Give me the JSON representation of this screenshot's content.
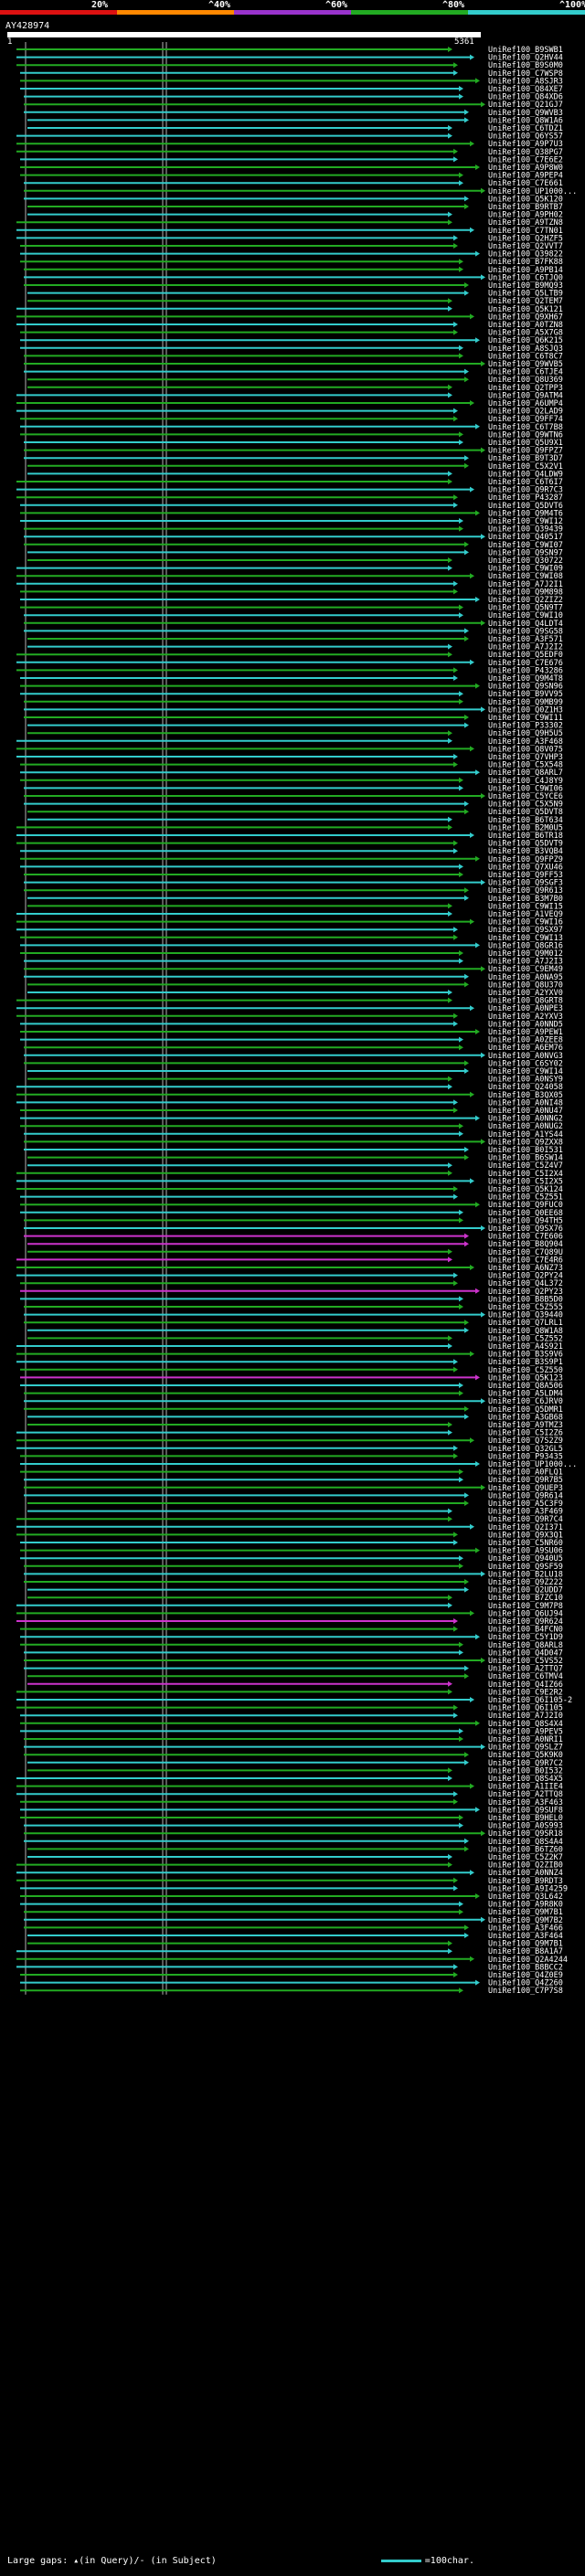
{
  "legend": {
    "labels": [
      "20%",
      "^40%",
      "^60%",
      "^80%",
      "^100%"
    ],
    "colors": [
      "#dd1111",
      "#ff8800",
      "#9933cc",
      "#22aa22",
      "#33cccc"
    ]
  },
  "query": {
    "id": "AY428974",
    "start": "1",
    "end": "5361"
  },
  "footer": {
    "gaps_text": "Large gaps: ▴(in Query)/- (in Subject)",
    "scale_text": "=100char."
  },
  "chart_data": {
    "type": "alignment-overview",
    "title": "AY428974",
    "xlim": [
      1,
      5361
    ],
    "rows": [
      {
        "id": "UniRef100_B9SWB1",
        "cat": "green"
      },
      {
        "id": "UniRef100_Q2HV44",
        "cat": "cyan"
      },
      {
        "id": "UniRef100_B9S0M0",
        "cat": "green"
      },
      {
        "id": "UniRef100_C7WSP8",
        "cat": "cyan"
      },
      {
        "id": "UniRef100_A8SJR3",
        "cat": "green"
      },
      {
        "id": "UniRef100_Q84XE7",
        "cat": "cyan"
      },
      {
        "id": "UniRef100_Q84XD6",
        "cat": "cyan"
      },
      {
        "id": "UniRef100_Q21GJ7",
        "cat": "green"
      },
      {
        "id": "UniRef100_Q9WVB3",
        "cat": "cyan"
      },
      {
        "id": "UniRef100_Q8W1A6",
        "cat": "cyan"
      },
      {
        "id": "UniRef100_C6TDZ1",
        "cat": "cyan"
      },
      {
        "id": "UniRef100_Q6YS57",
        "cat": "cyan"
      },
      {
        "id": "UniRef100_A9P7U3",
        "cat": "green"
      },
      {
        "id": "UniRef100_Q38PG7",
        "cat": "green"
      },
      {
        "id": "UniRef100_C7E6E2",
        "cat": "cyan"
      },
      {
        "id": "UniRef100_A9P8W0",
        "cat": "green"
      },
      {
        "id": "UniRef100_A9PEP4",
        "cat": "green"
      },
      {
        "id": "UniRef100_C7E661",
        "cat": "cyan"
      },
      {
        "id": "UniRef100_UP1000...",
        "cat": "green"
      },
      {
        "id": "UniRef100_Q5K120",
        "cat": "cyan"
      },
      {
        "id": "UniRef100_B9RTB7",
        "cat": "green"
      },
      {
        "id": "UniRef100_A9PH02",
        "cat": "cyan"
      },
      {
        "id": "UniRef100_A9TZN8",
        "cat": "green"
      },
      {
        "id": "UniRef100_C7TN01",
        "cat": "cyan"
      },
      {
        "id": "UniRef100_Q2HZF5",
        "cat": "cyan"
      },
      {
        "id": "UniRef100_Q2VVT7",
        "cat": "green"
      },
      {
        "id": "UniRef100_Q39822",
        "cat": "cyan"
      },
      {
        "id": "UniRef100_B7FK88",
        "cat": "green"
      },
      {
        "id": "UniRef100_A9PB14",
        "cat": "green"
      },
      {
        "id": "UniRef100_C6TJQ0",
        "cat": "cyan"
      },
      {
        "id": "UniRef100_B9MQ93",
        "cat": "green"
      },
      {
        "id": "UniRef100_Q5LTB9",
        "cat": "cyan"
      },
      {
        "id": "UniRef100_Q2TEM7",
        "cat": "green"
      },
      {
        "id": "UniRef100_Q5K121",
        "cat": "cyan"
      },
      {
        "id": "UniRef100_Q9XH67",
        "cat": "green"
      },
      {
        "id": "UniRef100_A0TZN8",
        "cat": "cyan"
      },
      {
        "id": "UniRef100_A5X7G8",
        "cat": "green"
      },
      {
        "id": "UniRef100_Q6K215",
        "cat": "cyan"
      },
      {
        "id": "UniRef100_A8SJQ3",
        "cat": "cyan"
      },
      {
        "id": "UniRef100_C6T8C7",
        "cat": "green"
      },
      {
        "id": "UniRef100_Q9WVB5",
        "cat": "green"
      },
      {
        "id": "UniRef100_C6TJE4",
        "cat": "cyan"
      },
      {
        "id": "UniRef100_Q8U369",
        "cat": "green"
      },
      {
        "id": "UniRef100_Q2TPP3",
        "cat": "green"
      },
      {
        "id": "UniRef100_Q9ATM4",
        "cat": "cyan"
      },
      {
        "id": "UniRef100_A6UMP4",
        "cat": "green"
      },
      {
        "id": "UniRef100_Q2LAD9",
        "cat": "cyan"
      },
      {
        "id": "UniRef100_Q9FF74",
        "cat": "green"
      },
      {
        "id": "UniRef100_C6T7B8",
        "cat": "cyan"
      },
      {
        "id": "UniRef100_Q9WTN6",
        "cat": "green"
      },
      {
        "id": "UniRef100_Q5U9X1",
        "cat": "cyan"
      },
      {
        "id": "UniRef100_Q9FPZ7",
        "cat": "green"
      },
      {
        "id": "UniRef100_B9T3D7",
        "cat": "cyan"
      },
      {
        "id": "UniRef100_C5X2V1",
        "cat": "green"
      },
      {
        "id": "UniRef100_Q4LDW9",
        "cat": "cyan"
      },
      {
        "id": "UniRef100_C6T6I7",
        "cat": "green"
      },
      {
        "id": "UniRef100_Q9R7C3",
        "cat": "cyan"
      },
      {
        "id": "UniRef100_P43287",
        "cat": "green"
      },
      {
        "id": "UniRef100_Q5DVT6",
        "cat": "cyan"
      },
      {
        "id": "UniRef100_Q9M4T6",
        "cat": "green"
      },
      {
        "id": "UniRef100_C9WI12",
        "cat": "cyan"
      },
      {
        "id": "UniRef100_Q39439",
        "cat": "green"
      },
      {
        "id": "UniRef100_Q40517",
        "cat": "cyan"
      },
      {
        "id": "UniRef100_C9WI07",
        "cat": "green"
      },
      {
        "id": "UniRef100_Q9SN97",
        "cat": "cyan"
      },
      {
        "id": "UniRef100_Q30722",
        "cat": "green"
      },
      {
        "id": "UniRef100_C9WI09",
        "cat": "cyan"
      },
      {
        "id": "UniRef100_C9WI08",
        "cat": "green"
      },
      {
        "id": "UniRef100_A7J2I1",
        "cat": "cyan"
      },
      {
        "id": "UniRef100_Q9M898",
        "cat": "green"
      },
      {
        "id": "UniRef100_Q2ZIZ2",
        "cat": "cyan"
      },
      {
        "id": "UniRef100_Q5N9T7",
        "cat": "green"
      },
      {
        "id": "UniRef100_C9WI10",
        "cat": "cyan"
      },
      {
        "id": "UniRef100_Q4LDT4",
        "cat": "green"
      },
      {
        "id": "UniRef100_Q9SG58",
        "cat": "cyan"
      },
      {
        "id": "UniRef100_A3F571",
        "cat": "green"
      },
      {
        "id": "UniRef100_A7J2I2",
        "cat": "cyan"
      },
      {
        "id": "UniRef100_Q5EDF0",
        "cat": "green"
      },
      {
        "id": "UniRef100_C7E676",
        "cat": "cyan"
      },
      {
        "id": "UniRef100_P43286",
        "cat": "green"
      },
      {
        "id": "UniRef100_Q9M4T8",
        "cat": "cyan"
      },
      {
        "id": "UniRef100_Q9SN96",
        "cat": "green"
      },
      {
        "id": "UniRef100_B9VV95",
        "cat": "cyan"
      },
      {
        "id": "UniRef100_Q9MB99",
        "cat": "green"
      },
      {
        "id": "UniRef100_Q0Z1H3",
        "cat": "cyan"
      },
      {
        "id": "UniRef100_C9WI11",
        "cat": "green"
      },
      {
        "id": "UniRef100_P33302",
        "cat": "cyan"
      },
      {
        "id": "UniRef100_Q9H5U5",
        "cat": "green"
      },
      {
        "id": "UniRef100_A3F468",
        "cat": "cyan"
      },
      {
        "id": "UniRef100_Q8V075",
        "cat": "green"
      },
      {
        "id": "UniRef100_Q7VHP3",
        "cat": "cyan"
      },
      {
        "id": "UniRef100_C5X548",
        "cat": "green"
      },
      {
        "id": "UniRef100_Q8ARL7",
        "cat": "cyan"
      },
      {
        "id": "UniRef100_C4J8Y9",
        "cat": "green"
      },
      {
        "id": "UniRef100_C9WI06",
        "cat": "cyan"
      },
      {
        "id": "UniRef100_C5YCE6",
        "cat": "green"
      },
      {
        "id": "UniRef100_C5X5N9",
        "cat": "cyan"
      },
      {
        "id": "UniRef100_Q5DVT8",
        "cat": "green"
      },
      {
        "id": "UniRef100_B6T634",
        "cat": "cyan"
      },
      {
        "id": "UniRef100_B2M0U5",
        "cat": "green"
      },
      {
        "id": "UniRef100_B6TR18",
        "cat": "cyan"
      },
      {
        "id": "UniRef100_Q5DVT9",
        "cat": "green"
      },
      {
        "id": "UniRef100_B3VQB4",
        "cat": "cyan"
      },
      {
        "id": "UniRef100_Q9FPZ9",
        "cat": "green"
      },
      {
        "id": "UniRef100_Q7XU46",
        "cat": "cyan"
      },
      {
        "id": "UniRef100_Q9FF53",
        "cat": "green"
      },
      {
        "id": "UniRef100_Q9SGF3",
        "cat": "cyan"
      },
      {
        "id": "UniRef100_Q9R613",
        "cat": "green"
      },
      {
        "id": "UniRef100_B3M7B0",
        "cat": "cyan"
      },
      {
        "id": "UniRef100_C9WI15",
        "cat": "green"
      },
      {
        "id": "UniRef100_A1VEQ9",
        "cat": "cyan"
      },
      {
        "id": "UniRef100_C9WI16",
        "cat": "green"
      },
      {
        "id": "UniRef100_Q9SX97",
        "cat": "cyan"
      },
      {
        "id": "UniRef100_C9WI13",
        "cat": "green"
      },
      {
        "id": "UniRef100_Q8GR16",
        "cat": "cyan"
      },
      {
        "id": "UniRef100_Q9M012",
        "cat": "green"
      },
      {
        "id": "UniRef100_A7J2I3",
        "cat": "cyan"
      },
      {
        "id": "UniRef100_C9EM49",
        "cat": "green"
      },
      {
        "id": "UniRef100_A0NA95",
        "cat": "cyan"
      },
      {
        "id": "UniRef100_Q8U370",
        "cat": "green"
      },
      {
        "id": "UniRef100_A2YXV0",
        "cat": "cyan"
      },
      {
        "id": "UniRef100_Q8GRT8",
        "cat": "green"
      },
      {
        "id": "UniRef100_A0NPE3",
        "cat": "cyan"
      },
      {
        "id": "UniRef100_A2YXV3",
        "cat": "green"
      },
      {
        "id": "UniRef100_A0NND5",
        "cat": "cyan"
      },
      {
        "id": "UniRef100_A9PEW1",
        "cat": "green"
      },
      {
        "id": "UniRef100_A0ZEE8",
        "cat": "cyan"
      },
      {
        "id": "UniRef100_A6EM76",
        "cat": "green"
      },
      {
        "id": "UniRef100_A0NVG3",
        "cat": "cyan"
      },
      {
        "id": "UniRef100_C6SY02",
        "cat": "green"
      },
      {
        "id": "UniRef100_C9WI14",
        "cat": "cyan"
      },
      {
        "id": "UniRef100_A0NSY9",
        "cat": "green"
      },
      {
        "id": "UniRef100_Q24058",
        "cat": "cyan"
      },
      {
        "id": "UniRef100_B3QX05",
        "cat": "green"
      },
      {
        "id": "UniRef100_A0NI48",
        "cat": "cyan"
      },
      {
        "id": "UniRef100_A0NU47",
        "cat": "green"
      },
      {
        "id": "UniRef100_A0NNG2",
        "cat": "cyan"
      },
      {
        "id": "UniRef100_A0NUG2",
        "cat": "green"
      },
      {
        "id": "UniRef100_A1YS44",
        "cat": "cyan"
      },
      {
        "id": "UniRef100_Q9ZXX8",
        "cat": "green"
      },
      {
        "id": "UniRef100_B0I531",
        "cat": "cyan"
      },
      {
        "id": "UniRef100_B6SW14",
        "cat": "green"
      },
      {
        "id": "UniRef100_C5Z4V7",
        "cat": "cyan"
      },
      {
        "id": "UniRef100_C5I2X4",
        "cat": "green"
      },
      {
        "id": "UniRef100_C5I2X5",
        "cat": "cyan"
      },
      {
        "id": "UniRef100_Q5K124",
        "cat": "green"
      },
      {
        "id": "UniRef100_C5Z551",
        "cat": "cyan"
      },
      {
        "id": "UniRef100_Q9FUC0",
        "cat": "green"
      },
      {
        "id": "UniRef100_Q0EE68",
        "cat": "cyan"
      },
      {
        "id": "UniRef100_Q94TH5",
        "cat": "green"
      },
      {
        "id": "UniRef100_Q9SX76",
        "cat": "cyan"
      },
      {
        "id": "UniRef100_C7E606",
        "cat": "magenta"
      },
      {
        "id": "UniRef100_B8Q904",
        "cat": "magenta"
      },
      {
        "id": "UniRef100_C7Q89U",
        "cat": "green"
      },
      {
        "id": "UniRef100_C7E4R6",
        "cat": "magenta"
      },
      {
        "id": "UniRef100_A6NZ73",
        "cat": "green"
      },
      {
        "id": "UniRef100_Q2PY24",
        "cat": "cyan"
      },
      {
        "id": "UniRef100_Q4L372",
        "cat": "green"
      },
      {
        "id": "UniRef100_Q2PY23",
        "cat": "magenta"
      },
      {
        "id": "UniRef100_B8B5D0",
        "cat": "cyan"
      },
      {
        "id": "UniRef100_C5Z555",
        "cat": "green"
      },
      {
        "id": "UniRef100_Q39440",
        "cat": "cyan"
      },
      {
        "id": "UniRef100_Q7LRL1",
        "cat": "green"
      },
      {
        "id": "UniRef100_Q8W1A8",
        "cat": "cyan"
      },
      {
        "id": "UniRef100_C5Z552",
        "cat": "green"
      },
      {
        "id": "UniRef100_A4S921",
        "cat": "cyan"
      },
      {
        "id": "UniRef100_B3S9V6",
        "cat": "green"
      },
      {
        "id": "UniRef100_B3S9P1",
        "cat": "cyan"
      },
      {
        "id": "UniRef100_C5Z550",
        "cat": "green"
      },
      {
        "id": "UniRef100_Q5K123",
        "cat": "magenta"
      },
      {
        "id": "UniRef100_Q8A506",
        "cat": "cyan"
      },
      {
        "id": "UniRef100_A5LDM4",
        "cat": "green"
      },
      {
        "id": "UniRef100_C6JRV0",
        "cat": "cyan"
      },
      {
        "id": "UniRef100_Q5DMR1",
        "cat": "green"
      },
      {
        "id": "UniRef100_A3GB68",
        "cat": "cyan"
      },
      {
        "id": "UniRef100_A9TMZ3",
        "cat": "green"
      },
      {
        "id": "UniRef100_C5I2Z6",
        "cat": "cyan"
      },
      {
        "id": "UniRef100_Q7S2Z9",
        "cat": "green"
      },
      {
        "id": "UniRef100_Q32GL5",
        "cat": "cyan"
      },
      {
        "id": "UniRef100_P93435",
        "cat": "green"
      },
      {
        "id": "UniRef100_UP1000...",
        "cat": "cyan"
      },
      {
        "id": "UniRef100_A0FLQ1",
        "cat": "green"
      },
      {
        "id": "UniRef100_Q9R7B5",
        "cat": "cyan"
      },
      {
        "id": "UniRef100_Q9UEP3",
        "cat": "green"
      },
      {
        "id": "UniRef100_Q9R614",
        "cat": "cyan"
      },
      {
        "id": "UniRef100_A5C3F9",
        "cat": "green"
      },
      {
        "id": "UniRef100_A3F469",
        "cat": "cyan"
      },
      {
        "id": "UniRef100_Q9R7C4",
        "cat": "green"
      },
      {
        "id": "UniRef100_Q2I371",
        "cat": "cyan"
      },
      {
        "id": "UniRef100_Q9X3Q1",
        "cat": "green"
      },
      {
        "id": "UniRef100_C5NR60",
        "cat": "cyan"
      },
      {
        "id": "UniRef100_A9SU06",
        "cat": "green"
      },
      {
        "id": "UniRef100_Q940U5",
        "cat": "cyan"
      },
      {
        "id": "UniRef100_Q9SF59",
        "cat": "green"
      },
      {
        "id": "UniRef100_B2LU18",
        "cat": "cyan"
      },
      {
        "id": "UniRef100_Q9Z222",
        "cat": "green"
      },
      {
        "id": "UniRef100_Q2UDD7",
        "cat": "cyan"
      },
      {
        "id": "UniRef100_B7ZC10",
        "cat": "green"
      },
      {
        "id": "UniRef100_C9M7P8",
        "cat": "cyan"
      },
      {
        "id": "UniRef100_Q6UJ94",
        "cat": "green"
      },
      {
        "id": "UniRef100_Q9R624",
        "cat": "magenta"
      },
      {
        "id": "UniRef100_B4FCN0",
        "cat": "green"
      },
      {
        "id": "UniRef100_C5Y1D9",
        "cat": "cyan"
      },
      {
        "id": "UniRef100_Q8ARL8",
        "cat": "green"
      },
      {
        "id": "UniRef100_Q4D047",
        "cat": "cyan"
      },
      {
        "id": "UniRef100_C5VS52",
        "cat": "green"
      },
      {
        "id": "UniRef100_A2TTQ7",
        "cat": "cyan"
      },
      {
        "id": "UniRef100_C6TMV4",
        "cat": "green"
      },
      {
        "id": "UniRef100_Q4IZ66",
        "cat": "magenta"
      },
      {
        "id": "UniRef100_C9E2R2",
        "cat": "green"
      },
      {
        "id": "UniRef100_Q6I105-2",
        "cat": "cyan"
      },
      {
        "id": "UniRef100_Q6I105",
        "cat": "green"
      },
      {
        "id": "UniRef100_A7J2I0",
        "cat": "cyan"
      },
      {
        "id": "UniRef100_Q8S4X4",
        "cat": "green"
      },
      {
        "id": "UniRef100_A9PEV5",
        "cat": "cyan"
      },
      {
        "id": "UniRef100_A0NRI1",
        "cat": "green"
      },
      {
        "id": "UniRef100_Q9SLZ7",
        "cat": "cyan"
      },
      {
        "id": "UniRef100_Q5K9K0",
        "cat": "green"
      },
      {
        "id": "UniRef100_Q9R7C2",
        "cat": "cyan"
      },
      {
        "id": "UniRef100_B0I532",
        "cat": "green"
      },
      {
        "id": "UniRef100_Q8S4X5",
        "cat": "cyan"
      },
      {
        "id": "UniRef100_A1IIE4",
        "cat": "green"
      },
      {
        "id": "UniRef100_A2TTQ8",
        "cat": "cyan"
      },
      {
        "id": "UniRef100_A3F463",
        "cat": "green"
      },
      {
        "id": "UniRef100_Q9SUF8",
        "cat": "cyan"
      },
      {
        "id": "UniRef100_B9HEL0",
        "cat": "green"
      },
      {
        "id": "UniRef100_A0S993",
        "cat": "cyan"
      },
      {
        "id": "UniRef100_Q9SR18",
        "cat": "green"
      },
      {
        "id": "UniRef100_Q8S4A4",
        "cat": "cyan"
      },
      {
        "id": "UniRef100_B6TZ60",
        "cat": "green"
      },
      {
        "id": "UniRef100_C5Z2K7",
        "cat": "cyan"
      },
      {
        "id": "UniRef100_Q2ZIB0",
        "cat": "green"
      },
      {
        "id": "UniRef100_A0NNZ4",
        "cat": "cyan"
      },
      {
        "id": "UniRef100_B9RDT3",
        "cat": "green"
      },
      {
        "id": "UniRef100_A9I4259",
        "cat": "cyan"
      },
      {
        "id": "UniRef100_Q3L642",
        "cat": "green"
      },
      {
        "id": "UniRef100_A9R8K0",
        "cat": "cyan"
      },
      {
        "id": "UniRef100_Q9M7B1",
        "cat": "green"
      },
      {
        "id": "UniRef100_Q9M7B2",
        "cat": "cyan"
      },
      {
        "id": "UniRef100_A3F466",
        "cat": "green"
      },
      {
        "id": "UniRef100_A3F464",
        "cat": "cyan"
      },
      {
        "id": "UniRef100_Q9M7B1",
        "cat": "green"
      },
      {
        "id": "UniRef100_B8A1A7",
        "cat": "cyan"
      },
      {
        "id": "UniRef100_Q2A4244",
        "cat": "green"
      },
      {
        "id": "UniRef100_B8BCC2",
        "cat": "cyan"
      },
      {
        "id": "UniRef100_Q4Z0E9",
        "cat": "green"
      },
      {
        "id": "UniRef100_Q4Z260",
        "cat": "cyan"
      },
      {
        "id": "UniRef100_C7P7S8",
        "cat": "green"
      }
    ]
  }
}
